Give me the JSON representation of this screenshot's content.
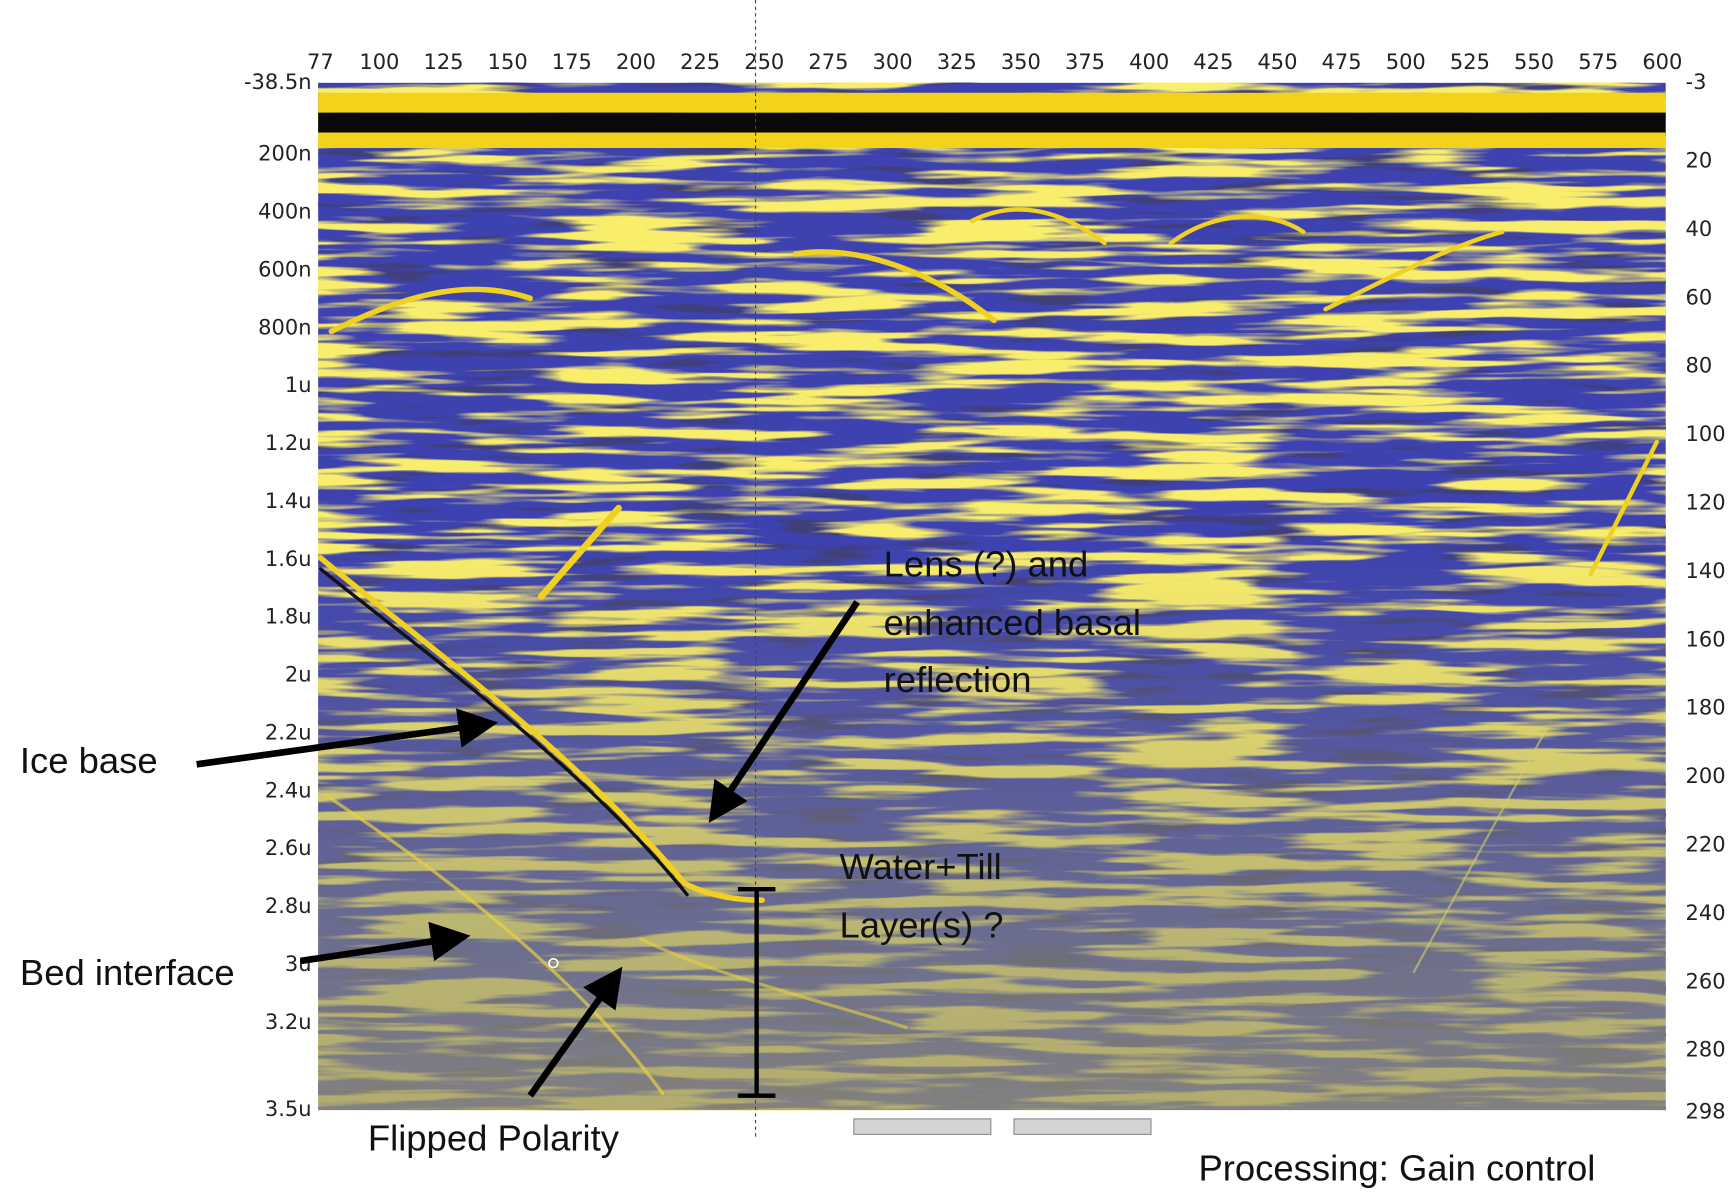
{
  "top_axis": {
    "labels": [
      77,
      100,
      125,
      150,
      175,
      200,
      225,
      250,
      275,
      300,
      325,
      350,
      375,
      400,
      425,
      450,
      475,
      500,
      525,
      550,
      575,
      600
    ]
  },
  "left_axis": {
    "labels": [
      "-38.5n",
      "200n",
      "400n",
      "600n",
      "800n",
      "1u",
      "1.2u",
      "1.4u",
      "1.6u",
      "1.8u",
      "2u",
      "2.2u",
      "2.4u",
      "2.6u",
      "2.8u",
      "3u",
      "3.2u",
      "3.5u"
    ]
  },
  "right_axis": {
    "labels": [
      -3,
      20,
      40,
      60,
      80,
      100,
      120,
      140,
      160,
      180,
      200,
      220,
      240,
      260,
      280,
      298
    ]
  },
  "annotations": {
    "lens": [
      "Lens (?) and",
      "enhanced basal",
      "reflection"
    ],
    "ice_base": "Ice base",
    "bed_interface": "Bed interface",
    "flipped_polarity": "Flipped Polarity",
    "water_till": [
      "Water+Till",
      "Layer(s) ?"
    ],
    "processing": "Processing: Gain control"
  }
}
